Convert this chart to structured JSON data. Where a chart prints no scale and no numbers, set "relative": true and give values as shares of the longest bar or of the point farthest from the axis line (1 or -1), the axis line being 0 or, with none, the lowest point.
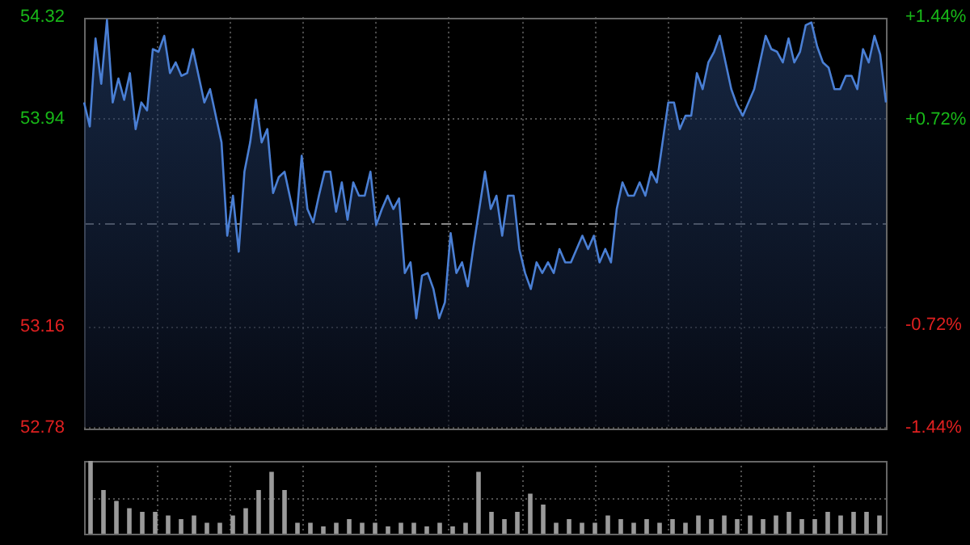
{
  "chart_data": [
    {
      "type": "area",
      "categories": [
        null,
        null,
        null,
        null,
        null,
        null,
        null,
        null,
        null,
        null,
        null,
        null,
        null,
        null,
        null,
        null,
        null,
        null,
        null,
        null,
        null,
        null,
        null,
        null,
        null,
        null,
        null,
        null,
        null,
        null,
        null,
        null,
        null,
        null,
        null,
        null,
        null,
        null,
        null,
        null,
        null,
        null,
        null,
        null,
        null,
        null,
        null,
        null,
        null,
        null,
        null,
        null,
        null,
        null,
        null,
        null,
        null,
        null,
        null,
        null,
        null,
        null,
        null,
        null,
        null,
        null,
        null,
        null,
        null,
        null,
        null,
        null,
        null,
        null,
        null,
        null,
        null,
        null,
        null,
        null,
        null,
        null,
        null,
        null,
        null,
        null,
        null,
        null,
        null,
        null,
        null,
        null,
        null,
        null,
        null,
        null,
        null,
        null,
        null,
        null,
        null,
        null,
        null,
        null,
        null,
        null,
        null,
        null,
        null,
        null,
        null,
        null,
        null,
        null,
        null,
        null,
        null,
        null,
        null,
        null,
        null,
        null,
        null,
        null,
        null,
        null,
        null,
        null,
        null,
        null,
        null,
        null,
        null,
        null,
        null,
        null,
        null,
        null,
        null,
        null,
        null
      ],
      "series": [
        {
          "color": "#4a7fd4",
          "values": [
            54.0,
            53.91,
            54.24,
            54.07,
            54.31,
            54.0,
            54.09,
            54.01,
            54.11,
            53.9,
            54.0,
            53.97,
            54.2,
            54.19,
            54.25,
            54.11,
            54.15,
            54.1,
            54.11,
            54.2,
            54.1,
            54.0,
            54.05,
            53.95,
            53.85,
            53.5,
            53.65,
            53.44,
            53.74,
            53.85,
            54.01,
            53.85,
            53.9,
            53.66,
            53.72,
            53.74,
            53.64,
            53.54,
            53.8,
            53.6,
            53.55,
            53.65,
            53.74,
            53.74,
            53.59,
            53.7,
            53.56,
            53.7,
            53.65,
            53.65,
            53.74,
            53.54,
            53.6,
            53.65,
            53.6,
            53.64,
            53.36,
            53.4,
            53.19,
            53.35,
            53.36,
            53.3,
            53.19,
            53.25,
            53.51,
            53.36,
            53.4,
            53.31,
            53.46,
            53.6,
            53.74,
            53.6,
            53.65,
            53.5,
            53.65,
            53.65,
            53.45,
            53.36,
            53.3,
            53.4,
            53.36,
            53.4,
            53.36,
            53.45,
            53.4,
            53.4,
            53.45,
            53.5,
            53.45,
            53.5,
            53.4,
            53.45,
            53.4,
            53.6,
            53.7,
            53.65,
            53.65,
            53.7,
            53.65,
            53.74,
            53.7,
            53.85,
            54.0,
            54.0,
            53.9,
            53.95,
            53.95,
            54.11,
            54.05,
            54.15,
            54.19,
            54.25,
            54.15,
            54.05,
            53.99,
            53.95,
            54.0,
            54.05,
            54.15,
            54.25,
            54.2,
            54.19,
            54.15,
            54.24,
            54.15,
            54.19,
            54.29,
            54.3,
            54.21,
            54.15,
            54.13,
            54.05,
            54.05,
            54.1,
            54.1,
            54.05,
            54.2,
            54.15,
            54.25,
            54.18,
            54.0
          ]
        }
      ],
      "ylim": [
        52.78,
        54.32
      ],
      "yticks": [
        54.32,
        53.94,
        53.16,
        52.78
      ],
      "y2lim": [
        -1.44,
        1.44
      ],
      "y2ticks": [
        {
          "value": 1.44,
          "label": "+1.44%"
        },
        {
          "value": 0.72,
          "label": "+0.72%"
        },
        {
          "value": -0.72,
          "label": "-0.72%"
        },
        {
          "value": -1.44,
          "label": "-1.44%"
        }
      ],
      "ref_lines": [
        {
          "axis": "y",
          "value": 53.55,
          "line_style": "dashed"
        }
      ],
      "grid": true,
      "legend": false,
      "marker": "none",
      "line_style": "solid"
    },
    {
      "type": "bar",
      "relative": true,
      "categories": [
        null,
        null,
        null,
        null,
        null,
        null,
        null,
        null,
        null,
        null,
        null,
        null,
        null,
        null,
        null,
        null,
        null,
        null,
        null,
        null,
        null,
        null,
        null,
        null,
        null,
        null,
        null,
        null,
        null,
        null,
        null,
        null,
        null,
        null,
        null,
        null,
        null,
        null,
        null,
        null,
        null,
        null,
        null,
        null,
        null,
        null,
        null,
        null,
        null,
        null,
        null,
        null,
        null,
        null,
        null,
        null,
        null,
        null,
        null,
        null,
        null,
        null
      ],
      "series": [
        {
          "color": "#9a9a9a",
          "values": [
            1.0,
            0.6,
            0.45,
            0.35,
            0.3,
            0.3,
            0.25,
            0.2,
            0.25,
            0.15,
            0.15,
            0.25,
            0.35,
            0.6,
            0.85,
            0.6,
            0.15,
            0.15,
            0.1,
            0.15,
            0.2,
            0.15,
            0.15,
            0.1,
            0.15,
            0.15,
            0.1,
            0.15,
            0.1,
            0.15,
            0.85,
            0.3,
            0.2,
            0.3,
            0.55,
            0.4,
            0.15,
            0.2,
            0.15,
            0.15,
            0.25,
            0.2,
            0.15,
            0.2,
            0.15,
            0.2,
            0.15,
            0.25,
            0.2,
            0.25,
            0.2,
            0.25,
            0.2,
            0.25,
            0.3,
            0.2,
            0.2,
            0.3,
            0.25,
            0.3,
            0.3,
            0.25
          ]
        }
      ],
      "grid": true,
      "legend": false
    }
  ]
}
